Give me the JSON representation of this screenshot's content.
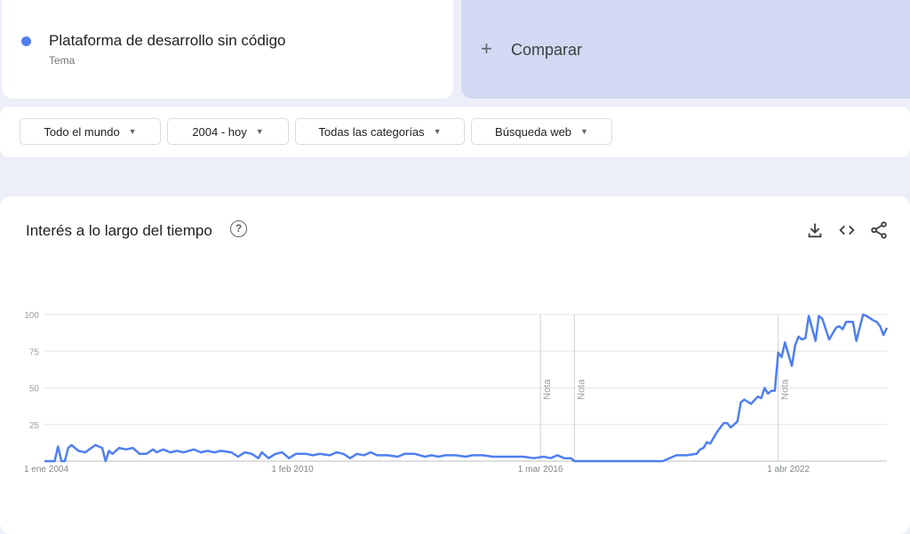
{
  "term": {
    "name": "Plataforma de desarrollo sin código",
    "type": "Tema",
    "color": "#4f7ff0"
  },
  "compare": {
    "icon": "plus-icon",
    "label": "Comparar"
  },
  "filters": [
    {
      "label": "Todo el mundo"
    },
    {
      "label": "2004 - hoy"
    },
    {
      "label": "Todas las categorías"
    },
    {
      "label": "Búsqueda web"
    }
  ],
  "card": {
    "title": "Interés a lo largo del tiempo",
    "help_icon": "?",
    "actions": [
      "download-icon",
      "embed-code-icon",
      "share-icon"
    ]
  },
  "chart_data": {
    "type": "line",
    "title": "",
    "xlabel": "",
    "ylabel": "",
    "ylim": [
      0,
      100
    ],
    "xlim": [
      "2004-01",
      "2024-09"
    ],
    "yticks": [
      "100",
      "75",
      "50",
      "25"
    ],
    "xticks": [
      {
        "date": "2004-01",
        "label": "1 ene 2004"
      },
      {
        "date": "2010-02",
        "label": "1 feb 2010"
      },
      {
        "date": "2016-03",
        "label": "1 mar 2016"
      },
      {
        "date": "2022-04",
        "label": "1 abr 2022"
      }
    ],
    "notes": [
      {
        "date": "2016-03",
        "label": "Nota"
      },
      {
        "date": "2017-01",
        "label": "Nota"
      },
      {
        "date": "2022-01",
        "label": "Nota"
      }
    ],
    "grid": true,
    "color": "#4f7ff0",
    "series": [
      {
        "points": [
          [
            "2004-01",
            0
          ],
          [
            "2004-04",
            0
          ],
          [
            "2004-05",
            10
          ],
          [
            "2004-06",
            0
          ],
          [
            "2004-07",
            0
          ],
          [
            "2004-08",
            9
          ],
          [
            "2004-09",
            11
          ],
          [
            "2004-11",
            7
          ],
          [
            "2005-01",
            6
          ],
          [
            "2005-04",
            11
          ],
          [
            "2005-06",
            9
          ],
          [
            "2005-07",
            0
          ],
          [
            "2005-08",
            7
          ],
          [
            "2005-09",
            5
          ],
          [
            "2005-11",
            9
          ],
          [
            "2006-01",
            8
          ],
          [
            "2006-03",
            9
          ],
          [
            "2006-05",
            5
          ],
          [
            "2006-07",
            5
          ],
          [
            "2006-09",
            8
          ],
          [
            "2006-10",
            6
          ],
          [
            "2006-12",
            8
          ],
          [
            "2007-02",
            6
          ],
          [
            "2007-04",
            7
          ],
          [
            "2007-06",
            6
          ],
          [
            "2007-09",
            8
          ],
          [
            "2007-11",
            6
          ],
          [
            "2008-01",
            7
          ],
          [
            "2008-03",
            6
          ],
          [
            "2008-05",
            7
          ],
          [
            "2008-08",
            6
          ],
          [
            "2008-10",
            3
          ],
          [
            "2008-12",
            6
          ],
          [
            "2009-02",
            5
          ],
          [
            "2009-04",
            2
          ],
          [
            "2009-05",
            6
          ],
          [
            "2009-07",
            2
          ],
          [
            "2009-09",
            5
          ],
          [
            "2009-11",
            6
          ],
          [
            "2010-01",
            2
          ],
          [
            "2010-03",
            5
          ],
          [
            "2010-06",
            5
          ],
          [
            "2010-08",
            4
          ],
          [
            "2010-10",
            5
          ],
          [
            "2011-01",
            4
          ],
          [
            "2011-03",
            6
          ],
          [
            "2011-05",
            5
          ],
          [
            "2011-07",
            2
          ],
          [
            "2011-09",
            5
          ],
          [
            "2011-11",
            4
          ],
          [
            "2012-01",
            6
          ],
          [
            "2012-03",
            4
          ],
          [
            "2012-06",
            4
          ],
          [
            "2012-09",
            3
          ],
          [
            "2012-11",
            5
          ],
          [
            "2013-02",
            5
          ],
          [
            "2013-05",
            3
          ],
          [
            "2013-07",
            4
          ],
          [
            "2013-09",
            3
          ],
          [
            "2013-11",
            4
          ],
          [
            "2014-02",
            4
          ],
          [
            "2014-05",
            3
          ],
          [
            "2014-07",
            4
          ],
          [
            "2014-10",
            4
          ],
          [
            "2015-01",
            3
          ],
          [
            "2015-04",
            3
          ],
          [
            "2015-07",
            3
          ],
          [
            "2015-10",
            3
          ],
          [
            "2016-01",
            2
          ],
          [
            "2016-04",
            3
          ],
          [
            "2016-06",
            2
          ],
          [
            "2016-08",
            4
          ],
          [
            "2016-10",
            2
          ],
          [
            "2016-12",
            2
          ],
          [
            "2017-01",
            0
          ],
          [
            "2019-03",
            0
          ],
          [
            "2019-07",
            4
          ],
          [
            "2019-10",
            4
          ],
          [
            "2020-01",
            5
          ],
          [
            "2020-02",
            8
          ],
          [
            "2020-03",
            9
          ],
          [
            "2020-04",
            13
          ],
          [
            "2020-05",
            12
          ],
          [
            "2020-07",
            20
          ],
          [
            "2020-09",
            26
          ],
          [
            "2020-10",
            26
          ],
          [
            "2020-11",
            23
          ],
          [
            "2021-01",
            27
          ],
          [
            "2021-02",
            40
          ],
          [
            "2021-03",
            42
          ],
          [
            "2021-05",
            39
          ],
          [
            "2021-07",
            44
          ],
          [
            "2021-08",
            43
          ],
          [
            "2021-09",
            50
          ],
          [
            "2021-10",
            46
          ],
          [
            "2021-11",
            48
          ],
          [
            "2021-12",
            48
          ],
          [
            "2022-01",
            74
          ],
          [
            "2022-02",
            71
          ],
          [
            "2022-03",
            81
          ],
          [
            "2022-04",
            73
          ],
          [
            "2022-05",
            65
          ],
          [
            "2022-06",
            79
          ],
          [
            "2022-07",
            85
          ],
          [
            "2022-08",
            83
          ],
          [
            "2022-09",
            84
          ],
          [
            "2022-10",
            99
          ],
          [
            "2022-12",
            82
          ],
          [
            "2023-01",
            99
          ],
          [
            "2023-02",
            97
          ],
          [
            "2023-04",
            83
          ],
          [
            "2023-06",
            91
          ],
          [
            "2023-07",
            92
          ],
          [
            "2023-08",
            90
          ],
          [
            "2023-09",
            95
          ],
          [
            "2023-11",
            95
          ],
          [
            "2023-12",
            82
          ],
          [
            "2024-02",
            100
          ],
          [
            "2024-03",
            99
          ],
          [
            "2024-05",
            96
          ],
          [
            "2024-06",
            95
          ],
          [
            "2024-07",
            92
          ],
          [
            "2024-08",
            86
          ],
          [
            "2024-09",
            91
          ]
        ]
      }
    ]
  }
}
